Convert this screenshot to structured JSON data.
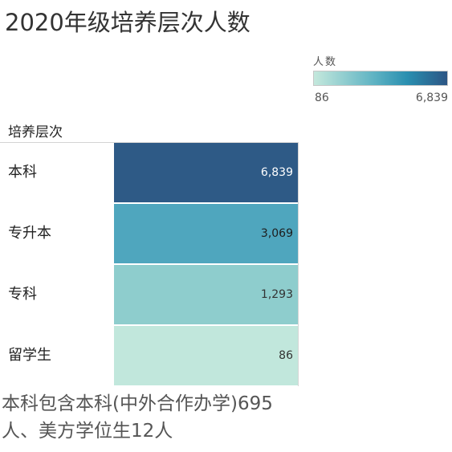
{
  "title": "2020年级培养层次人数",
  "legend": {
    "title": "人数",
    "min_label": "86",
    "max_label": "6,839",
    "color_low": "#c4e8dc",
    "color_high": "#2c5584"
  },
  "chart_data": {
    "type": "heatmap",
    "title": "2020年级培养层次人数",
    "row_header": "培养层次",
    "categories": [
      "本科",
      "专升本",
      "专科",
      "留学生"
    ],
    "values": [
      6839,
      3069,
      1293,
      86
    ],
    "value_labels": [
      "6,839",
      "3,069",
      "1,293",
      "86"
    ],
    "colors": [
      "#2e5a86",
      "#4fa6be",
      "#8ecdcd",
      "#c1e7dc"
    ],
    "color_scale": {
      "min": 86,
      "max": 6839
    }
  },
  "note": "本科包含本科(中外合作办学)695人、美方学位生12人"
}
